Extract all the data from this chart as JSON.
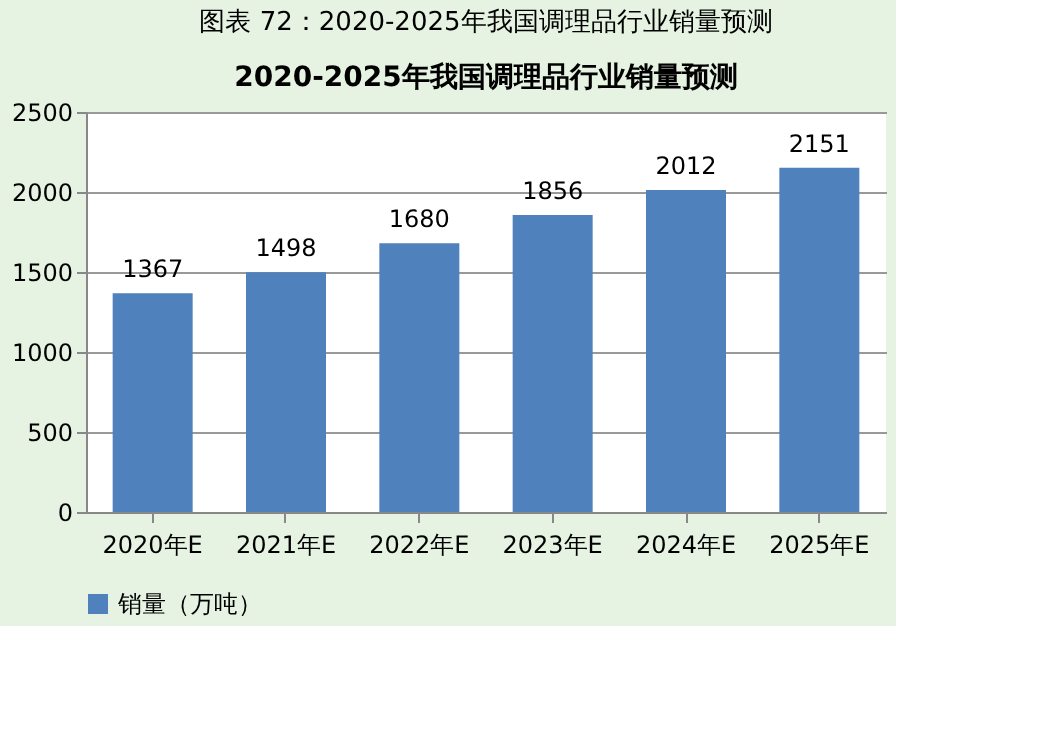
{
  "chart_data": {
    "type": "bar",
    "title": "图表 72：2020-2025年我国调理品行业销量预测",
    "subtitle": "2020-2025年我国调理品行业销量预测",
    "categories": [
      "2020年E",
      "2021年E",
      "2022年E",
      "2023年E",
      "2024年E",
      "2025年E"
    ],
    "series": [
      {
        "name": "销量（万吨）",
        "color": "#4f81bd",
        "values": [
          1367,
          1498,
          1680,
          1856,
          2012,
          2151
        ]
      }
    ],
    "ylim": [
      0,
      2500
    ],
    "yticks": [
      0,
      500,
      1000,
      1500,
      2000,
      2500
    ],
    "grid": "y",
    "legend": "bottom",
    "data_labels": true
  }
}
